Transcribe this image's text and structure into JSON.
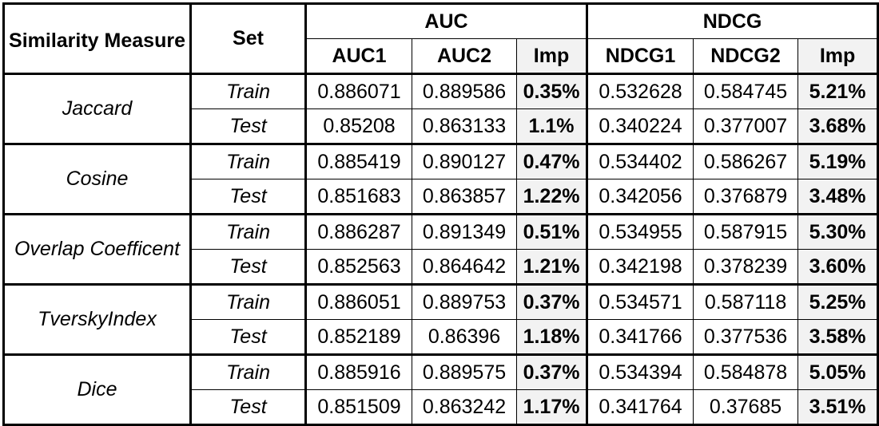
{
  "headers": {
    "measure": "Similarity Measure",
    "set": "Set",
    "auc_group": "AUC",
    "ndcg_group": "NDCG",
    "auc1": "AUC1",
    "auc2": "AUC2",
    "auc_imp": "Imp",
    "ndcg1": "NDCG1",
    "ndcg2": "NDCG2",
    "ndcg_imp": "Imp"
  },
  "groups": [
    {
      "measure": "Jaccard",
      "rows": [
        {
          "set": "Train",
          "auc1": "0.886071",
          "auc2": "0.889586",
          "auc_imp": "0.35%",
          "ndcg1": "0.532628",
          "ndcg2": "0.584745",
          "ndcg_imp": "5.21%"
        },
        {
          "set": "Test",
          "auc1": "0.85208",
          "auc2": "0.863133",
          "auc_imp": "1.1%",
          "ndcg1": "0.340224",
          "ndcg2": "0.377007",
          "ndcg_imp": "3.68%"
        }
      ]
    },
    {
      "measure": "Cosine",
      "rows": [
        {
          "set": "Train",
          "auc1": "0.885419",
          "auc2": "0.890127",
          "auc_imp": "0.47%",
          "ndcg1": "0.534402",
          "ndcg2": "0.586267",
          "ndcg_imp": "5.19%"
        },
        {
          "set": "Test",
          "auc1": "0.851683",
          "auc2": "0.863857",
          "auc_imp": "1.22%",
          "ndcg1": "0.342056",
          "ndcg2": "0.376879",
          "ndcg_imp": "3.48%"
        }
      ]
    },
    {
      "measure": "Overlap Coefficent",
      "rows": [
        {
          "set": "Train",
          "auc1": "0.886287",
          "auc2": "0.891349",
          "auc_imp": "0.51%",
          "ndcg1": "0.534955",
          "ndcg2": "0.587915",
          "ndcg_imp": "5.30%"
        },
        {
          "set": "Test",
          "auc1": "0.852563",
          "auc2": "0.864642",
          "auc_imp": "1.21%",
          "ndcg1": "0.342198",
          "ndcg2": "0.378239",
          "ndcg_imp": "3.60%"
        }
      ]
    },
    {
      "measure": "TverskyIndex",
      "rows": [
        {
          "set": "Train",
          "auc1": "0.886051",
          "auc2": "0.889753",
          "auc_imp": "0.37%",
          "ndcg1": "0.534571",
          "ndcg2": "0.587118",
          "ndcg_imp": "5.25%"
        },
        {
          "set": "Test",
          "auc1": "0.852189",
          "auc2": "0.86396",
          "auc_imp": "1.18%",
          "ndcg1": "0.341766",
          "ndcg2": "0.377536",
          "ndcg_imp": "3.58%"
        }
      ]
    },
    {
      "measure": "Dice",
      "rows": [
        {
          "set": "Train",
          "auc1": "0.885916",
          "auc2": "0.889575",
          "auc_imp": "0.37%",
          "ndcg1": "0.534394",
          "ndcg2": "0.584878",
          "ndcg_imp": "5.05%"
        },
        {
          "set": "Test",
          "auc1": "0.851509",
          "auc2": "0.863242",
          "auc_imp": "1.17%",
          "ndcg1": "0.341764",
          "ndcg2": "0.37685",
          "ndcg_imp": "3.51%"
        }
      ]
    }
  ]
}
